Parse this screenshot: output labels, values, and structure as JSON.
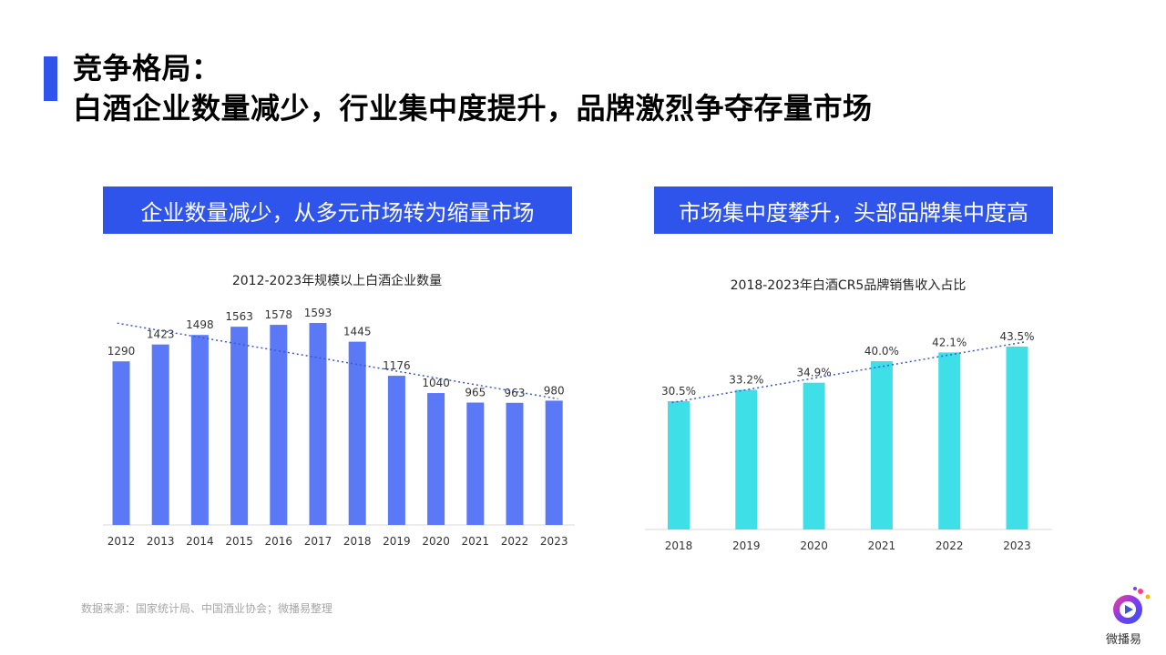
{
  "header": {
    "title_line1": "竞争格局：",
    "title_line2": "白酒企业数量减少，行业集中度提升，品牌激烈争夺存量市场"
  },
  "left_panel": {
    "banner": "企业数量减少，从多元市场转为缩量市场"
  },
  "right_panel": {
    "banner": "市场集中度攀升，头部品牌集中度高"
  },
  "footer": {
    "source": "数据来源：国家统计局、中国酒业协会；微播易整理"
  },
  "logo": {
    "label": "微播易",
    "icon": "play-icon"
  },
  "colors": {
    "accent": "#2f54eb",
    "bar_left": "#5b78f7",
    "bar_right": "#3fdfe8",
    "trend": "#3a57d6"
  },
  "chart_data": [
    {
      "type": "bar",
      "title": "2012-2023年规模以上白酒企业数量",
      "categories": [
        "2012",
        "2013",
        "2014",
        "2015",
        "2016",
        "2017",
        "2018",
        "2019",
        "2020",
        "2021",
        "2022",
        "2023"
      ],
      "values": [
        1290,
        1423,
        1498,
        1563,
        1578,
        1593,
        1445,
        1176,
        1040,
        965,
        963,
        980
      ],
      "data_labels": [
        "1290",
        "1423",
        "1498",
        "1563",
        "1578",
        "1593",
        "1445",
        "1176",
        "1040",
        "965",
        "963",
        "980"
      ],
      "ylim": [
        0,
        1600
      ],
      "trendline": "linear",
      "grid": false,
      "xlabel": "",
      "ylabel": ""
    },
    {
      "type": "bar",
      "title": "2018-2023年白酒CR5品牌销售收入占比",
      "categories": [
        "2018",
        "2019",
        "2020",
        "2021",
        "2022",
        "2023"
      ],
      "values": [
        30.5,
        33.2,
        34.9,
        40.0,
        42.1,
        43.5
      ],
      "data_labels": [
        "30.5%",
        "33.2%",
        "34.9%",
        "40.0%",
        "42.1%",
        "43.5%"
      ],
      "unit": "%",
      "ylim": [
        0,
        45
      ],
      "trendline": "linear",
      "grid": false,
      "xlabel": "",
      "ylabel": ""
    }
  ]
}
